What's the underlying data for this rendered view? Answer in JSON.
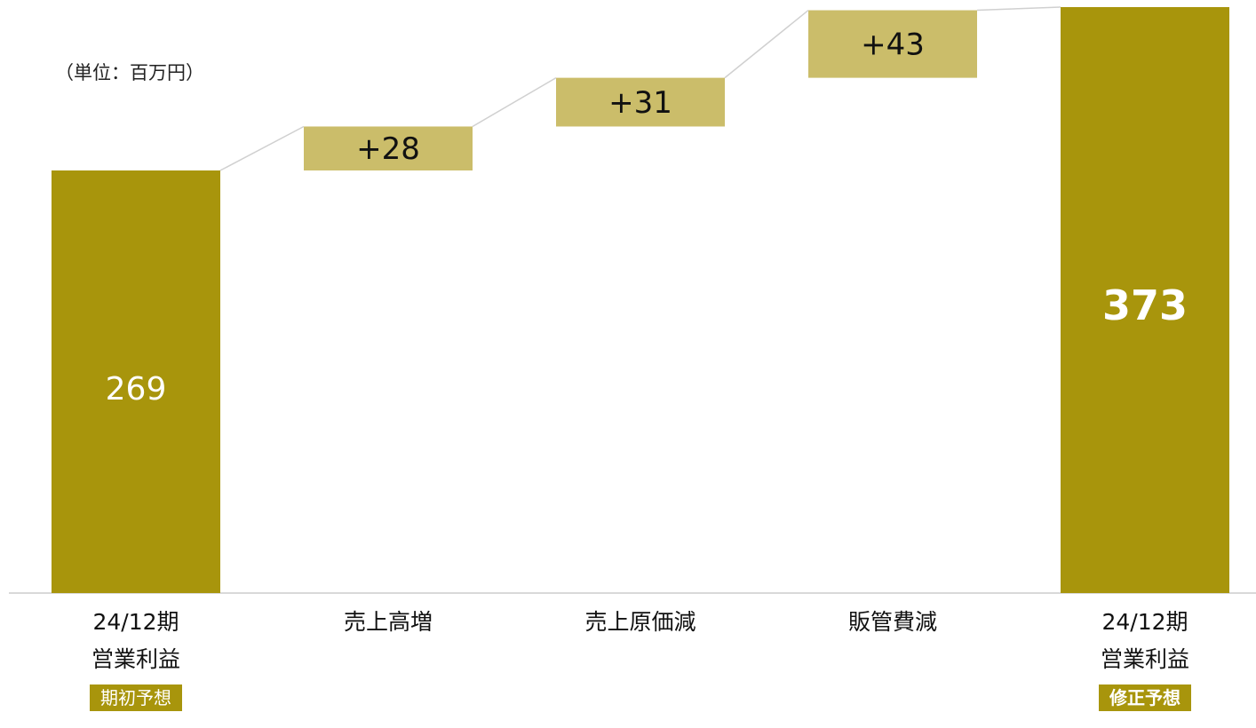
{
  "unit_label": "（単位：百万円）",
  "chart_data": {
    "type": "waterfall",
    "categories": [
      "24/12期 営業利益",
      "売上高増",
      "売上原価減",
      "販管費減",
      "24/12期 営業利益"
    ],
    "values": [
      269,
      28,
      31,
      43,
      373
    ],
    "kinds": [
      "total",
      "delta",
      "delta",
      "delta",
      "total"
    ],
    "value_labels": [
      "269",
      "+28",
      "+31",
      "+43",
      "373"
    ],
    "category_lines": [
      [
        "24/12期",
        "営業利益"
      ],
      [
        "売上高増"
      ],
      [
        "売上原価減"
      ],
      [
        "販管費減"
      ],
      [
        "24/12期",
        "営業利益"
      ]
    ],
    "badges": [
      "期初予想",
      "",
      "",
      "",
      "修正予想"
    ],
    "ylim": [
      0,
      373
    ],
    "colors": {
      "total": "#a8950c",
      "delta": "#cbbd6a",
      "connector": "#d0d0d0",
      "axis": "#d9d9d9",
      "badge": "#a8950c"
    }
  }
}
